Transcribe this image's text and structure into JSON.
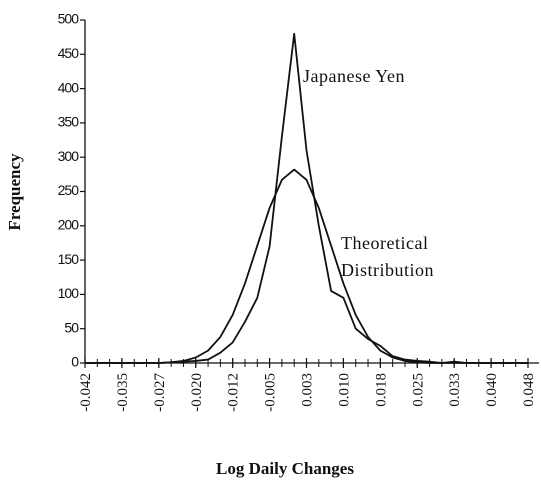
{
  "chart_data": {
    "type": "line",
    "x_label": "Log Daily Changes",
    "y_label": "Frequency",
    "x": [
      -0.0425,
      -0.04,
      -0.0375,
      -0.035,
      -0.0325,
      -0.03,
      -0.0275,
      -0.025,
      -0.0225,
      -0.02,
      -0.0175,
      -0.015,
      -0.0125,
      -0.01,
      -0.0075,
      -0.005,
      -0.0025,
      0,
      0.0025,
      0.005,
      0.0075,
      0.01,
      0.0125,
      0.015,
      0.0175,
      0.02,
      0.0225,
      0.025,
      0.0275,
      0.03,
      0.0325,
      0.035,
      0.0375,
      0.04,
      0.0425,
      0.045,
      0.0475
    ],
    "series": [
      {
        "name": "Japanese Yen",
        "color": "#111111",
        "values": [
          0,
          0,
          0,
          0,
          0,
          0,
          0,
          1,
          2,
          3,
          5,
          15,
          30,
          60,
          95,
          170,
          330,
          480,
          310,
          200,
          105,
          95,
          50,
          35,
          25,
          10,
          5,
          3,
          2,
          0,
          2,
          0,
          0,
          0,
          0,
          0,
          0
        ]
      },
      {
        "name": "Theoretical Distribution",
        "color": "#111111",
        "values": [
          0,
          0,
          0,
          0,
          0,
          0,
          0,
          1,
          3,
          8,
          18,
          38,
          70,
          116,
          171,
          226,
          267,
          282,
          267,
          226,
          171,
          116,
          70,
          38,
          18,
          8,
          3,
          1,
          0,
          0,
          0,
          0,
          0,
          0,
          0,
          0,
          0
        ]
      }
    ],
    "xlim": [
      -0.0425,
      0.0475
    ],
    "xticks": [
      {
        "value": -0.0425,
        "label": "-0.042"
      },
      {
        "value": -0.035,
        "label": "-0.035"
      },
      {
        "value": -0.0275,
        "label": "-0.027"
      },
      {
        "value": -0.02,
        "label": "-0.020"
      },
      {
        "value": -0.0125,
        "label": "-0.012"
      },
      {
        "value": -0.005,
        "label": "-0.005"
      },
      {
        "value": 0.0025,
        "label": "0.003"
      },
      {
        "value": 0.01,
        "label": "0.010"
      },
      {
        "value": 0.0175,
        "label": "0.018"
      },
      {
        "value": 0.025,
        "label": "0.025"
      },
      {
        "value": 0.0325,
        "label": "0.033"
      },
      {
        "value": 0.04,
        "label": "0.040"
      },
      {
        "value": 0.0475,
        "label": "0.048"
      }
    ],
    "ylim": [
      0,
      500
    ],
    "yticks": [
      0,
      50,
      100,
      150,
      200,
      250,
      300,
      350,
      400,
      450,
      500
    ],
    "grid": false
  }
}
